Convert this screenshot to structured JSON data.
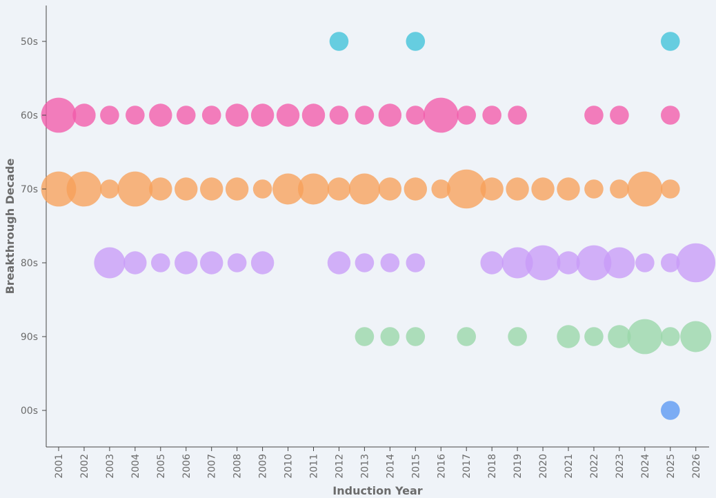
{
  "chart_data": {
    "type": "scatter",
    "xlabel": "Induction Year",
    "ylabel": "Breakthrough Decade",
    "x_categories": [
      "2001",
      "2002",
      "2003",
      "2004",
      "2005",
      "2006",
      "2007",
      "2008",
      "2009",
      "2010",
      "2011",
      "2012",
      "2013",
      "2014",
      "2015",
      "2016",
      "2017",
      "2018",
      "2019",
      "2020",
      "2021",
      "2022",
      "2023",
      "2024",
      "2025",
      "2026"
    ],
    "y_categories": [
      "50s",
      "60s",
      "70s",
      "80s",
      "90s",
      "00s"
    ],
    "grid": false,
    "legend": "none",
    "size_unit": "relative",
    "series": [
      {
        "decade": "50s",
        "color": "#3fc1d9",
        "points": [
          {
            "x": "2012",
            "size": 2
          },
          {
            "x": "2015",
            "size": 2
          },
          {
            "x": "2025",
            "size": 2
          }
        ]
      },
      {
        "decade": "60s",
        "color": "#f25aa9",
        "points": [
          {
            "x": "2001",
            "size": 6
          },
          {
            "x": "2002",
            "size": 3
          },
          {
            "x": "2003",
            "size": 2
          },
          {
            "x": "2004",
            "size": 2
          },
          {
            "x": "2005",
            "size": 3
          },
          {
            "x": "2006",
            "size": 2
          },
          {
            "x": "2007",
            "size": 2
          },
          {
            "x": "2008",
            "size": 3
          },
          {
            "x": "2009",
            "size": 3
          },
          {
            "x": "2010",
            "size": 3
          },
          {
            "x": "2011",
            "size": 3
          },
          {
            "x": "2012",
            "size": 2
          },
          {
            "x": "2013",
            "size": 2
          },
          {
            "x": "2014",
            "size": 3
          },
          {
            "x": "2015",
            "size": 2
          },
          {
            "x": "2016",
            "size": 6
          },
          {
            "x": "2017",
            "size": 2
          },
          {
            "x": "2018",
            "size": 2
          },
          {
            "x": "2019",
            "size": 2
          },
          {
            "x": "2022",
            "size": 2
          },
          {
            "x": "2023",
            "size": 2
          },
          {
            "x": "2025",
            "size": 2
          }
        ]
      },
      {
        "decade": "70s",
        "color": "#f7a05a",
        "points": [
          {
            "x": "2001",
            "size": 6
          },
          {
            "x": "2002",
            "size": 6
          },
          {
            "x": "2003",
            "size": 2
          },
          {
            "x": "2004",
            "size": 6
          },
          {
            "x": "2005",
            "size": 3
          },
          {
            "x": "2006",
            "size": 3
          },
          {
            "x": "2007",
            "size": 3
          },
          {
            "x": "2008",
            "size": 3
          },
          {
            "x": "2009",
            "size": 2
          },
          {
            "x": "2010",
            "size": 5
          },
          {
            "x": "2011",
            "size": 5
          },
          {
            "x": "2012",
            "size": 3
          },
          {
            "x": "2013",
            "size": 5
          },
          {
            "x": "2014",
            "size": 3
          },
          {
            "x": "2015",
            "size": 3
          },
          {
            "x": "2016",
            "size": 2
          },
          {
            "x": "2017",
            "size": 7
          },
          {
            "x": "2018",
            "size": 3
          },
          {
            "x": "2019",
            "size": 3
          },
          {
            "x": "2020",
            "size": 3
          },
          {
            "x": "2021",
            "size": 3
          },
          {
            "x": "2022",
            "size": 2
          },
          {
            "x": "2023",
            "size": 2
          },
          {
            "x": "2024",
            "size": 6
          },
          {
            "x": "2025",
            "size": 2
          }
        ]
      },
      {
        "decade": "80s",
        "color": "#c89bf7",
        "points": [
          {
            "x": "2003",
            "size": 5
          },
          {
            "x": "2004",
            "size": 3
          },
          {
            "x": "2005",
            "size": 2
          },
          {
            "x": "2006",
            "size": 3
          },
          {
            "x": "2007",
            "size": 3
          },
          {
            "x": "2008",
            "size": 2
          },
          {
            "x": "2009",
            "size": 3
          },
          {
            "x": "2012",
            "size": 3
          },
          {
            "x": "2013",
            "size": 2
          },
          {
            "x": "2014",
            "size": 2
          },
          {
            "x": "2015",
            "size": 2
          },
          {
            "x": "2018",
            "size": 3
          },
          {
            "x": "2019",
            "size": 5
          },
          {
            "x": "2020",
            "size": 6
          },
          {
            "x": "2021",
            "size": 3
          },
          {
            "x": "2022",
            "size": 6
          },
          {
            "x": "2023",
            "size": 5
          },
          {
            "x": "2024",
            "size": 2
          },
          {
            "x": "2025",
            "size": 2
          },
          {
            "x": "2026",
            "size": 7
          }
        ]
      },
      {
        "decade": "90s",
        "color": "#99d6a8",
        "points": [
          {
            "x": "2013",
            "size": 2
          },
          {
            "x": "2014",
            "size": 2
          },
          {
            "x": "2015",
            "size": 2
          },
          {
            "x": "2017",
            "size": 2
          },
          {
            "x": "2019",
            "size": 2
          },
          {
            "x": "2021",
            "size": 3
          },
          {
            "x": "2022",
            "size": 2
          },
          {
            "x": "2023",
            "size": 3
          },
          {
            "x": "2024",
            "size": 6
          },
          {
            "x": "2025",
            "size": 2
          },
          {
            "x": "2026",
            "size": 5
          }
        ]
      },
      {
        "decade": "00s",
        "color": "#5a97f2",
        "points": [
          {
            "x": "2025",
            "size": 2
          }
        ]
      }
    ]
  }
}
